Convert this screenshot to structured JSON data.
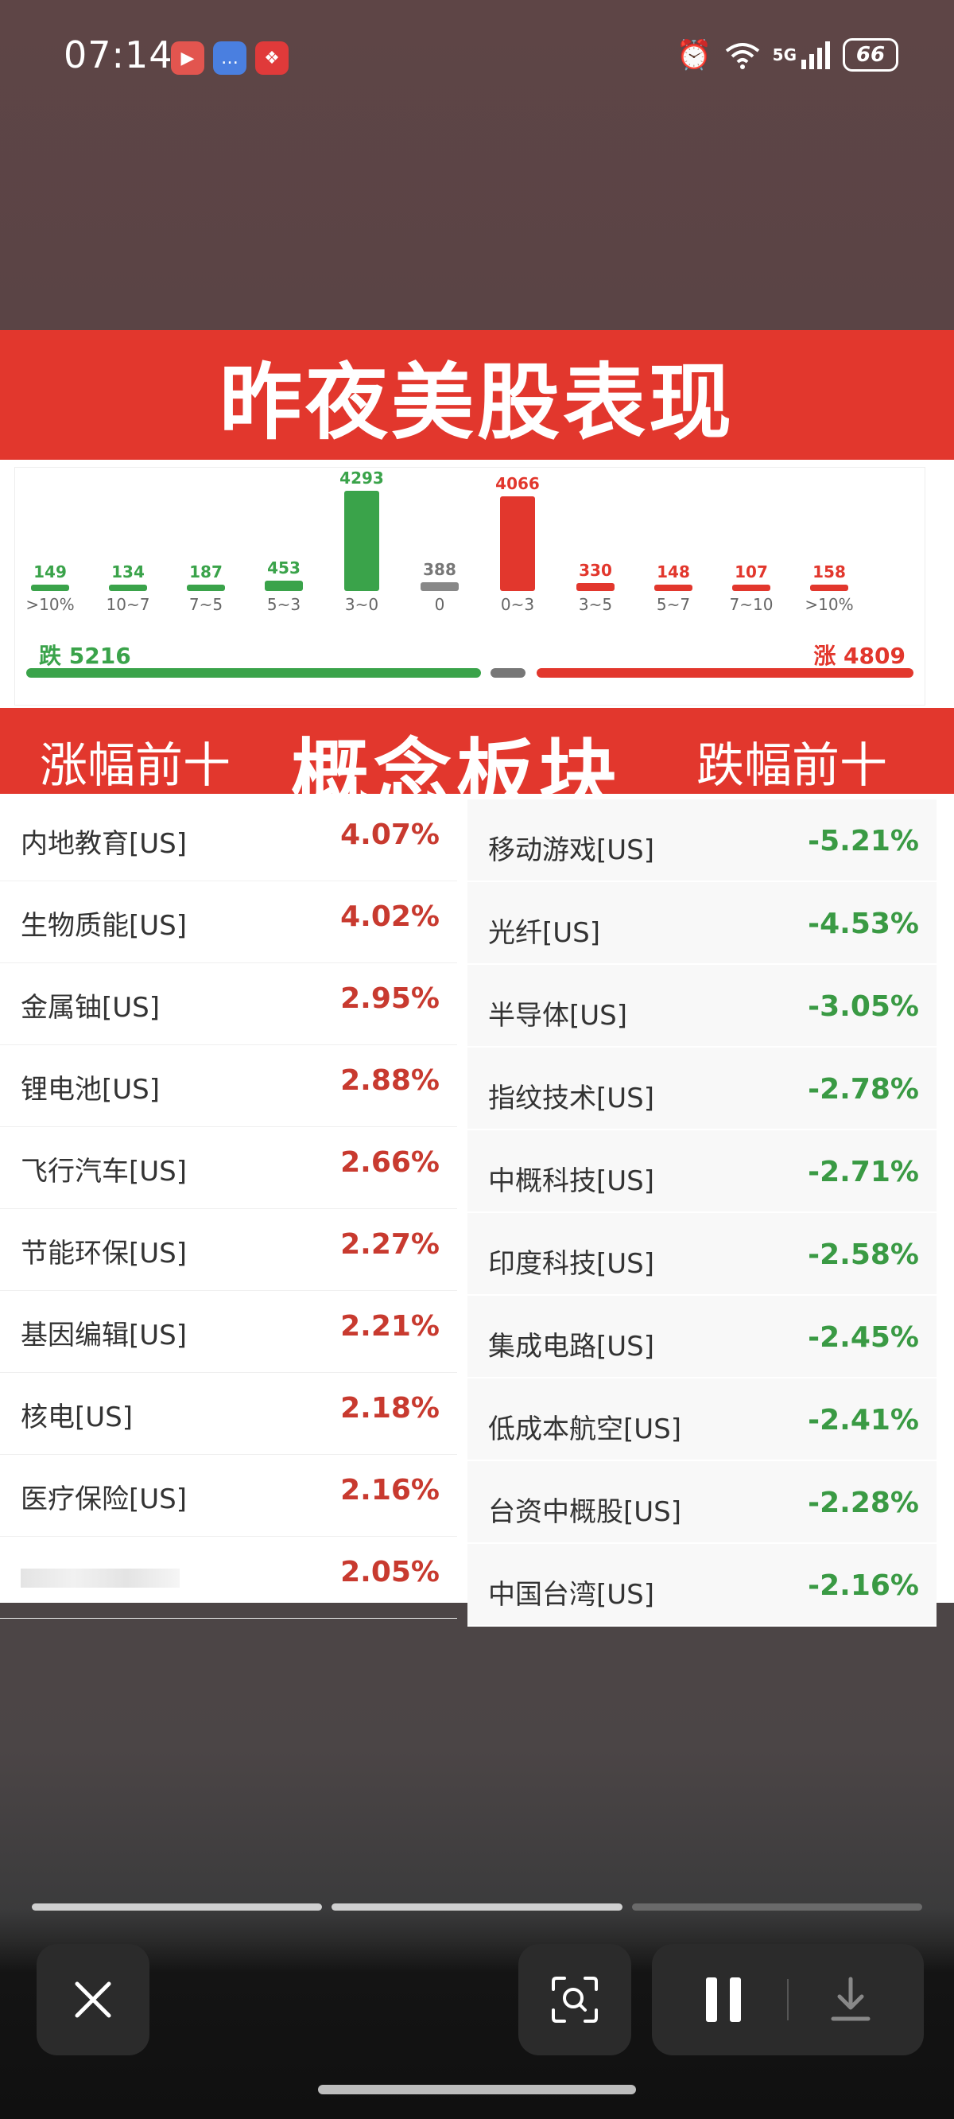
{
  "status": {
    "time": "07:14",
    "battery": "66",
    "network": "5G",
    "icons": [
      "video-app-icon",
      "message-app-icon",
      "red-app-icon",
      "alarm-icon",
      "wifi-icon",
      "signal-icon"
    ]
  },
  "image": {
    "title": "昨夜美股表现",
    "distribution": [
      {
        "value": "149",
        "label": ">10%",
        "color": "#3aa34a"
      },
      {
        "value": "134",
        "label": "10~7",
        "color": "#3aa34a"
      },
      {
        "value": "187",
        "label": "7~5",
        "color": "#3aa34a"
      },
      {
        "value": "453",
        "label": "5~3",
        "color": "#3aa34a"
      },
      {
        "value": "4293",
        "label": "3~0",
        "color": "#3aa34a"
      },
      {
        "value": "388",
        "label": "0",
        "color": "#888888"
      },
      {
        "value": "4066",
        "label": "0~3",
        "color": "#e2372d"
      },
      {
        "value": "330",
        "label": "3~5",
        "color": "#e2372d"
      },
      {
        "value": "148",
        "label": "5~7",
        "color": "#e2372d"
      },
      {
        "value": "107",
        "label": "7~10",
        "color": "#e2372d"
      },
      {
        "value": "158",
        "label": ">10%",
        "color": "#e2372d"
      }
    ],
    "down_total": "跌 5216",
    "up_total": "涨 4809",
    "sector_header": {
      "left": "涨幅前十",
      "center": "概念板块",
      "right": "跌幅前十"
    },
    "top_gainers": [
      {
        "name": "内地教育[US]",
        "pct": "4.07%"
      },
      {
        "name": "生物质能[US]",
        "pct": "4.02%"
      },
      {
        "name": "金属铀[US]",
        "pct": "2.95%"
      },
      {
        "name": "锂电池[US]",
        "pct": "2.88%"
      },
      {
        "name": "飞行汽车[US]",
        "pct": "2.66%"
      },
      {
        "name": "节能环保[US]",
        "pct": "2.27%"
      },
      {
        "name": "基因编辑[US]",
        "pct": "2.21%"
      },
      {
        "name": "核电[US]",
        "pct": "2.18%"
      },
      {
        "name": "医疗保险[US]",
        "pct": "2.16%"
      },
      {
        "name": "",
        "pct": "2.05%"
      }
    ],
    "top_losers": [
      {
        "name": "移动游戏[US]",
        "pct": "-5.21%"
      },
      {
        "name": "光纤[US]",
        "pct": "-4.53%"
      },
      {
        "name": "半导体[US]",
        "pct": "-3.05%"
      },
      {
        "name": "指纹技术[US]",
        "pct": "-2.78%"
      },
      {
        "name": "中概科技[US]",
        "pct": "-2.71%"
      },
      {
        "name": "印度科技[US]",
        "pct": "-2.58%"
      },
      {
        "name": "集成电路[US]",
        "pct": "-2.45%"
      },
      {
        "name": "低成本航空[US]",
        "pct": "-2.41%"
      },
      {
        "name": "台资中概股[US]",
        "pct": "-2.28%"
      },
      {
        "name": "中国台湾[US]",
        "pct": "-2.16%"
      }
    ]
  },
  "viewer": {
    "pages": 3,
    "current_page": 2,
    "controls": [
      "close-icon",
      "scan-icon",
      "pause-icon",
      "download-icon"
    ]
  }
}
